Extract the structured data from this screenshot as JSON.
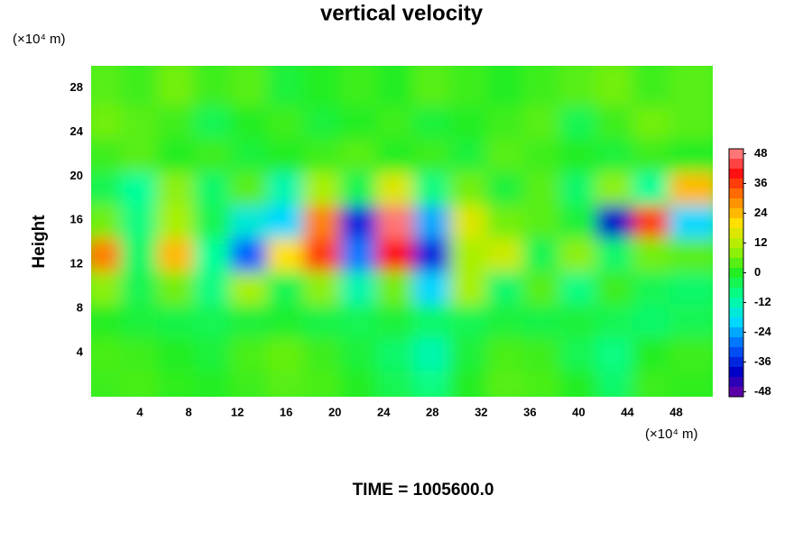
{
  "chart_data": {
    "type": "contour",
    "title": "vertical velocity",
    "y_label": "Height",
    "x_unit": "(×10⁴ m)",
    "y_unit": "(×10⁴ m)",
    "annotation": "TIME = 1005600.0",
    "x": [
      1.5,
      4.5,
      7.5,
      10.5,
      13.5,
      16.5,
      19.5,
      22.5,
      25.5,
      28.5,
      31.5,
      34.5,
      37.5,
      40.5,
      43.5,
      46.5,
      49.5
    ],
    "y": [
      1.5,
      4.5,
      7.5,
      10.5,
      13.5,
      16.5,
      19.5,
      22.5,
      25.5,
      28.5
    ],
    "z": [
      [
        2,
        3,
        1,
        0,
        2,
        4,
        3,
        0,
        -4,
        -8,
        0,
        4,
        3,
        0,
        -6,
        2,
        1
      ],
      [
        3,
        2,
        0,
        -2,
        3,
        5,
        2,
        -2,
        -6,
        -12,
        -2,
        3,
        2,
        -4,
        -8,
        0,
        2
      ],
      [
        0,
        -2,
        -3,
        -4,
        -2,
        -1,
        -3,
        -4,
        -2,
        -6,
        -4,
        -2,
        -3,
        -2,
        -4,
        -6,
        -4
      ],
      [
        8,
        -4,
        6,
        -8,
        10,
        -4,
        8,
        -12,
        6,
        -20,
        10,
        -6,
        4,
        -8,
        2,
        -4,
        -6
      ],
      [
        30,
        -6,
        24,
        -10,
        -30,
        20,
        36,
        -28,
        40,
        -36,
        10,
        14,
        -4,
        8,
        -6,
        6,
        4
      ],
      [
        6,
        -8,
        10,
        -4,
        -16,
        -20,
        30,
        -36,
        48,
        -24,
        16,
        6,
        4,
        -2,
        -40,
        36,
        -20
      ],
      [
        -4,
        -10,
        8,
        -6,
        4,
        -12,
        10,
        -4,
        16,
        -8,
        6,
        -2,
        4,
        -6,
        8,
        -10,
        24
      ],
      [
        2,
        4,
        0,
        2,
        -2,
        0,
        2,
        4,
        0,
        2,
        -2,
        4,
        2,
        0,
        -2,
        2,
        0
      ],
      [
        6,
        4,
        2,
        -4,
        0,
        2,
        -2,
        0,
        2,
        -2,
        0,
        2,
        4,
        -4,
        2,
        6,
        4
      ],
      [
        4,
        2,
        6,
        2,
        4,
        -2,
        0,
        2,
        0,
        4,
        2,
        0,
        2,
        4,
        6,
        2,
        4
      ]
    ],
    "xlim": [
      0,
      51
    ],
    "ylim": [
      0,
      30
    ],
    "xticks": [
      4,
      8,
      12,
      16,
      20,
      24,
      28,
      32,
      36,
      40,
      44,
      48
    ],
    "yticks": [
      4,
      8,
      12,
      16,
      20,
      24,
      28
    ],
    "clim": [
      -50,
      50
    ],
    "cticks": [
      -48,
      -36,
      -24,
      -12,
      0,
      12,
      24,
      36,
      48
    ],
    "colorscale": [
      "#7000a0",
      "#0000c8",
      "#0060ff",
      "#00d8ff",
      "#00ff9a",
      "#22ee22",
      "#a8f000",
      "#ffe000",
      "#ff8000",
      "#ff1010",
      "#ff9090"
    ]
  }
}
